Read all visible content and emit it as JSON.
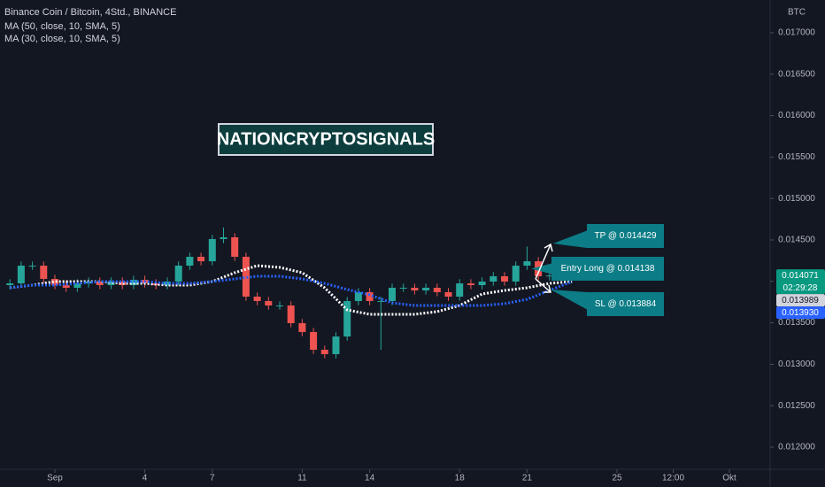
{
  "chart_data": {
    "type": "candlestick",
    "title": "Binance Coin / Bitcoin, 4Std., BINANCE",
    "watermark": "NATIONCRYPTOSIGNALS",
    "y_unit": "BTC",
    "up_color": "#26a69a",
    "down_color": "#ef5350",
    "x": [
      -2,
      -1.5,
      -1,
      -0.5,
      0,
      0.5,
      1,
      1.5,
      2,
      2.5,
      3,
      3.5,
      4,
      4.5,
      5,
      5.5,
      6,
      6.5,
      7,
      7.5,
      8,
      8.5,
      9,
      9.5,
      10,
      10.5,
      11,
      11.5,
      12,
      12.5,
      13,
      13.5,
      14,
      14.5,
      15,
      15.5,
      16,
      16.5,
      17,
      17.5,
      18,
      18.5,
      19,
      19.5,
      20,
      20.5,
      21,
      21.5,
      22
    ],
    "open": [
      0.013955,
      0.013976,
      0.01419,
      0.01419,
      0.01403,
      0.013955,
      0.013923,
      0.013976,
      0.013998,
      0.013955,
      0.013998,
      0.013955,
      0.014019,
      0.013976,
      0.013955,
      0.013998,
      0.01419,
      0.014297,
      0.014243,
      0.014511,
      0.014532,
      0.014297,
      0.013816,
      0.013763,
      0.013709,
      0.013709,
      0.013496,
      0.013389,
      0.013175,
      0.013122,
      0.013335,
      0.013763,
      0.01387,
      0.013763,
      0.013763,
      0.013923,
      0.013923,
      0.013891,
      0.013923,
      0.01387,
      0.013816,
      0.013976,
      0.013955,
      0.013998,
      0.014062,
      0.013998,
      0.01419,
      0.014243,
      0.014062
    ],
    "high": [
      0.014026,
      0.01424,
      0.01424,
      0.01424,
      0.01408,
      0.014005,
      0.014026,
      0.014048,
      0.014048,
      0.014048,
      0.014048,
      0.014069,
      0.014069,
      0.014026,
      0.014048,
      0.01424,
      0.014347,
      0.014347,
      0.014561,
      0.01465,
      0.014582,
      0.014347,
      0.013866,
      0.013813,
      0.013759,
      0.013759,
      0.013546,
      0.013439,
      0.013225,
      0.013385,
      0.013813,
      0.01392,
      0.01392,
      0.013813,
      0.013973,
      0.013973,
      0.013973,
      0.013973,
      0.013973,
      0.01392,
      0.014026,
      0.014026,
      0.014048,
      0.014112,
      0.014112,
      0.01424,
      0.01442,
      0.014293,
      0.014121
    ],
    "low": [
      0.013905,
      0.013926,
      0.01414,
      0.01398,
      0.013905,
      0.013873,
      0.013873,
      0.013926,
      0.013905,
      0.013905,
      0.013905,
      0.013905,
      0.013926,
      0.013905,
      0.013905,
      0.013948,
      0.01414,
      0.014193,
      0.014193,
      0.014461,
      0.014247,
      0.013766,
      0.013713,
      0.013659,
      0.013659,
      0.013446,
      0.013339,
      0.013125,
      0.013072,
      0.013072,
      0.013285,
      0.013713,
      0.013713,
      0.013175,
      0.013713,
      0.013873,
      0.013841,
      0.013841,
      0.01382,
      0.013766,
      0.013766,
      0.013905,
      0.013905,
      0.013948,
      0.013948,
      0.013948,
      0.01414,
      0.014012,
      0.014012
    ],
    "close": [
      0.013976,
      0.01419,
      0.01419,
      0.01403,
      0.013955,
      0.013923,
      0.013976,
      0.013998,
      0.013955,
      0.013998,
      0.013955,
      0.014019,
      0.013976,
      0.013955,
      0.013998,
      0.01419,
      0.014297,
      0.014243,
      0.014511,
      0.014532,
      0.014297,
      0.013816,
      0.013763,
      0.013709,
      0.013709,
      0.013496,
      0.013389,
      0.013175,
      0.013122,
      0.013335,
      0.013763,
      0.01387,
      0.013763,
      0.013763,
      0.013923,
      0.013923,
      0.013891,
      0.013923,
      0.01387,
      0.013816,
      0.013976,
      0.013955,
      0.013998,
      0.014062,
      0.013998,
      0.01419,
      0.014243,
      0.014062,
      0.014071
    ],
    "series": [
      {
        "name": "MA (50, close, 10, SMA, 5)",
        "color": "#ffffff",
        "x": [
          -2,
          -1,
          0,
          1,
          2,
          3,
          4,
          5,
          6,
          7,
          8,
          9,
          10,
          11,
          12,
          13,
          14,
          15,
          16,
          17,
          18,
          19,
          20,
          21,
          22,
          23
        ],
        "values": [
          0.013923,
          0.013955,
          0.013998,
          0.013998,
          0.013998,
          0.013976,
          0.013976,
          0.013955,
          0.013955,
          0.013998,
          0.014105,
          0.01419,
          0.014169,
          0.014105,
          0.013923,
          0.013656,
          0.013603,
          0.013603,
          0.013603,
          0.013635,
          0.013709,
          0.013848,
          0.013891,
          0.013923,
          0.013976,
          0.013998
        ]
      },
      {
        "name": "MA (30, close, 10, SMA, 5)",
        "color": "#2962ff",
        "x": [
          -2,
          -1,
          0,
          1,
          2,
          3,
          4,
          5,
          6,
          7,
          8,
          9,
          10,
          11,
          12,
          13,
          14,
          15,
          16,
          17,
          18,
          19,
          20,
          21,
          22,
          23
        ],
        "values": [
          0.013923,
          0.013955,
          0.013955,
          0.013976,
          0.013998,
          0.013998,
          0.013998,
          0.013976,
          0.013976,
          0.013998,
          0.01403,
          0.014062,
          0.014062,
          0.01403,
          0.013976,
          0.013902,
          0.013838,
          0.013741,
          0.013709,
          0.013709,
          0.013709,
          0.013709,
          0.013731,
          0.013784,
          0.013891,
          0.013998
        ]
      }
    ],
    "xlim": [
      -2.44,
      31.81
    ],
    "xticks": [
      {
        "value": 0,
        "label": "Sep"
      },
      4,
      7,
      11,
      14,
      18,
      21,
      25,
      {
        "value": 27.5,
        "label": "12:00"
      },
      {
        "value": 30,
        "label": "Okt"
      }
    ],
    "ylim": [
      0.011733,
      0.017395
    ],
    "yticks": [
      {
        "value": 0.012,
        "label": "0.012000"
      },
      {
        "value": 0.0125,
        "label": "0.012500"
      },
      {
        "value": 0.013,
        "label": "0.013000"
      },
      {
        "value": 0.0135,
        "label": "0.013500"
      },
      {
        "value": 0.014,
        "label": "0.014000"
      },
      {
        "value": 0.0145,
        "label": "0.014500"
      },
      {
        "value": 0.015,
        "label": "0.015000"
      },
      {
        "value": 0.0155,
        "label": "0.015500"
      },
      {
        "value": 0.016,
        "label": "0.016000"
      },
      {
        "value": 0.0165,
        "label": "0.016500"
      },
      {
        "value": 0.017,
        "label": "0.017000"
      }
    ],
    "annotations": [
      "TP @ 0.014429",
      "Entry Long @ 0.014138",
      "SL @ 0.013884"
    ],
    "price_labels": [
      {
        "value": 0.014071,
        "label": "0.014071",
        "color": "#089981"
      },
      {
        "value": 0.013989,
        "label": "0.013989",
        "color": "#d1d4dc"
      },
      {
        "value": 0.01393,
        "label": "0.013930",
        "color": "#2962ff"
      }
    ],
    "countdown": "02:29:28"
  }
}
